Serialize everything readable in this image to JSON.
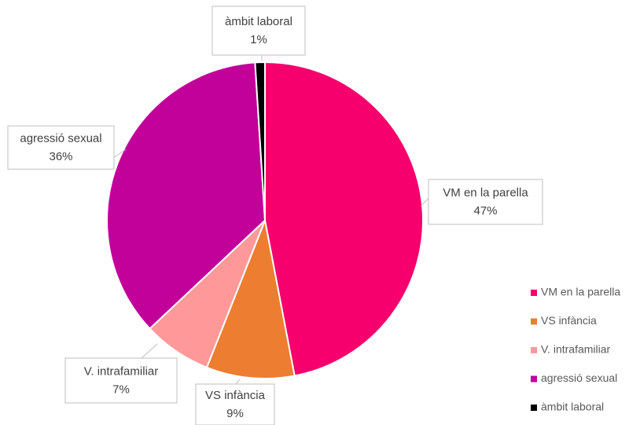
{
  "chart_data": {
    "type": "pie",
    "categories": [
      "VM en la parella",
      "VS infància",
      "V. intrafamiliar",
      "agressió sexual",
      "àmbit laboral"
    ],
    "values": [
      47,
      9,
      7,
      36,
      1
    ],
    "value_labels": [
      "47%",
      "9%",
      "7%",
      "36%",
      "1%"
    ],
    "colors": [
      "#f5006d",
      "#ed7d31",
      "#ff9999",
      "#c2009a",
      "#000000"
    ],
    "legend": "right"
  }
}
